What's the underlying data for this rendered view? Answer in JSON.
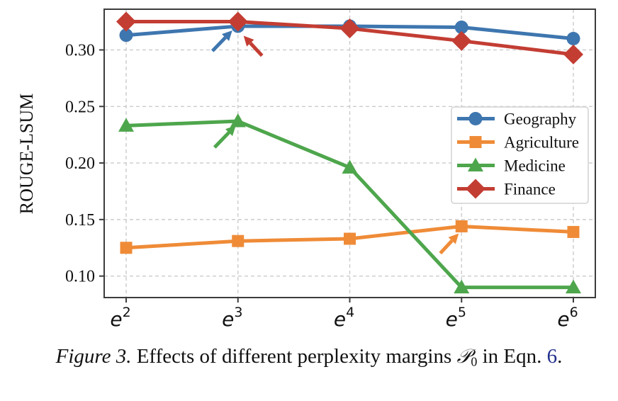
{
  "chart_data": {
    "type": "line",
    "title": "",
    "xlabel": "",
    "ylabel": "ROUGE-LSUM",
    "categories": [
      "e^2",
      "e^3",
      "e^4",
      "e^5",
      "e^6"
    ],
    "x_ticks": [
      {
        "base": "e",
        "exp": "2"
      },
      {
        "base": "e",
        "exp": "3"
      },
      {
        "base": "e",
        "exp": "4"
      },
      {
        "base": "e",
        "exp": "5"
      },
      {
        "base": "e",
        "exp": "6"
      }
    ],
    "y_ticks": [
      {
        "value": 0.3,
        "label": "0.30"
      },
      {
        "value": 0.25,
        "label": "0.25"
      },
      {
        "value": 0.2,
        "label": "0.20"
      },
      {
        "value": 0.15,
        "label": "0.15"
      },
      {
        "value": 0.1,
        "label": "0.10"
      }
    ],
    "ylim": [
      0.081,
      0.336
    ],
    "grid": true,
    "grid_style": "dashed",
    "legend": {
      "position": "center-right"
    },
    "series": [
      {
        "name": "Geography",
        "marker": "circle",
        "color": "#3e76af",
        "values": [
          0.313,
          0.321,
          0.321,
          0.32,
          0.31
        ]
      },
      {
        "name": "Agriculture",
        "marker": "square",
        "color": "#ef8b37",
        "values": [
          0.125,
          0.131,
          0.133,
          0.144,
          0.139
        ]
      },
      {
        "name": "Medicine",
        "marker": "triangle",
        "color": "#4ea64c",
        "values": [
          0.233,
          0.237,
          0.196,
          0.09,
          0.09
        ]
      },
      {
        "name": "Finance",
        "marker": "diamond",
        "color": "#c33d33",
        "values": [
          0.325,
          0.325,
          0.319,
          0.308,
          0.296
        ]
      }
    ],
    "annotations": [
      {
        "type": "arrow",
        "series": "Geography",
        "category": "e^3",
        "color": "#3e76af",
        "head_offset": [
          -8,
          6
        ],
        "tail_offset": [
          -28,
          29
        ]
      },
      {
        "type": "arrow",
        "series": "Finance",
        "category": "e^3",
        "color": "#c33d33",
        "head_offset": [
          8,
          20
        ],
        "tail_offset": [
          26,
          28
        ]
      },
      {
        "type": "arrow",
        "series": "Medicine",
        "category": "e^3",
        "color": "#4ea64c",
        "head_offset": [
          -3,
          6
        ],
        "tail_offset": [
          -30,
          31
        ]
      },
      {
        "type": "arrow",
        "series": "Agriculture",
        "category": "e^5",
        "color": "#ef8b37",
        "head_offset": [
          -4,
          10
        ],
        "tail_offset": [
          -26,
          28
        ]
      }
    ]
  },
  "caption": {
    "link_color": "#22308c",
    "segments": [
      {
        "text": "Figure 3.",
        "style": "italic"
      },
      {
        "text": " Effects of different perplexity margins ",
        "style": "normal"
      },
      {
        "text": "𝒫",
        "style": "mathcal"
      },
      {
        "text": "0",
        "style": "sub"
      },
      {
        "text": " in Eqn. ",
        "style": "normal"
      },
      {
        "text": "6",
        "style": "link"
      },
      {
        "text": ".",
        "style": "normal"
      }
    ]
  }
}
